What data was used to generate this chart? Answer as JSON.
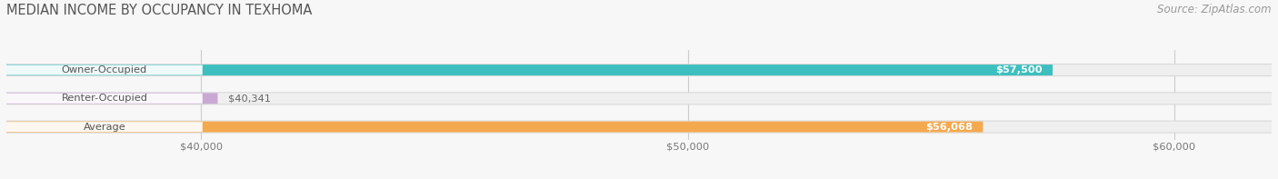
{
  "title": "MEDIAN INCOME BY OCCUPANCY IN TEXHOMA",
  "source": "Source: ZipAtlas.com",
  "categories": [
    "Owner-Occupied",
    "Renter-Occupied",
    "Average"
  ],
  "values": [
    57500,
    40341,
    56068
  ],
  "bar_colors": [
    "#3dbfbf",
    "#c9a8d4",
    "#f5a94e"
  ],
  "bar_labels": [
    "$57,500",
    "$40,341",
    "$56,068"
  ],
  "xlim_data": [
    36000,
    62000
  ],
  "xmin": 36000,
  "xmax": 62000,
  "xticks": [
    40000,
    50000,
    60000
  ],
  "xtick_labels": [
    "$40,000",
    "$50,000",
    "$60,000"
  ],
  "background_color": "#f7f7f7",
  "bar_bg_color": "#e0e0e0",
  "bar_container_color": "#ebebeb",
  "title_fontsize": 10.5,
  "label_fontsize": 8.5,
  "source_fontsize": 8.5,
  "bar_height": 0.38,
  "rounding_size": 0.19
}
